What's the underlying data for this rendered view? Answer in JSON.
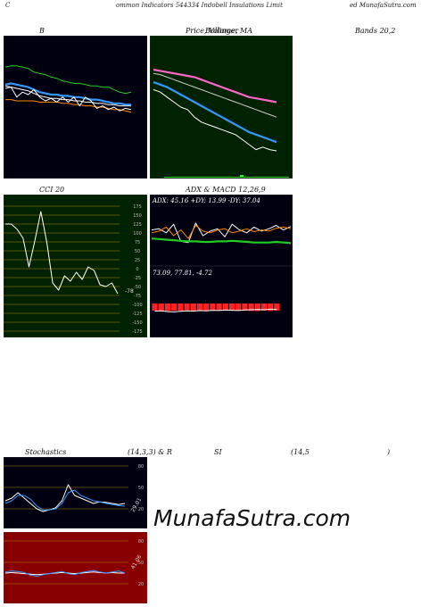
{
  "header": {
    "left": "C",
    "middle": "ommon  Indicators 544334  Indobell Insulations Limit",
    "right": "ed MunafaSutra.com"
  },
  "titles": {
    "bollinger": "B",
    "price_ma": "Price,  Volume,  MA",
    "price_ma_over": "Bollinger",
    "bands": "Bands 20,2",
    "cci": "CCI 20",
    "adx_macd": "ADX  & MACD 12,26,9",
    "stoch_left": "Stochastics",
    "stoch_mid": "(14,3,3) & R",
    "rsi_mid": "SI",
    "rsi_right": "(14,5",
    "rsi_close": ")"
  },
  "watermark": "MunafaSutra.com",
  "chart_data": [
    {
      "type": "line",
      "title": "B",
      "series": [
        {
          "color": "#22cc22",
          "values": [
            82,
            83,
            83,
            82,
            81,
            78,
            77,
            76,
            74,
            73,
            71,
            70,
            69,
            69,
            68,
            67,
            67,
            66,
            66,
            64,
            62,
            61,
            62
          ]
        },
        {
          "color": "#ffffff",
          "values": [
            65,
            66,
            65,
            64,
            63,
            61,
            59,
            58,
            57,
            57,
            56,
            56,
            55,
            55,
            54,
            54,
            53,
            53,
            52,
            52,
            51,
            51,
            51
          ]
        },
        {
          "color": "#3399ff",
          "values": [
            68,
            69,
            68,
            67,
            66,
            64,
            62,
            61,
            60,
            60,
            59,
            59,
            58,
            58,
            57,
            56,
            56,
            55,
            54,
            53,
            53,
            52,
            52
          ]
        },
        {
          "color": "#ff8800",
          "values": [
            56,
            56,
            55,
            55,
            55,
            55,
            54,
            54,
            54,
            54,
            53,
            53,
            52,
            52,
            51,
            51,
            50,
            50,
            49,
            48,
            48,
            47,
            46
          ]
        },
        {
          "color": "#ffffff",
          "values": [
            67,
            66,
            58,
            62,
            60,
            64,
            58,
            55,
            57,
            54,
            58,
            54,
            58,
            51,
            58,
            55,
            49,
            51,
            48,
            50,
            47,
            49,
            48
          ]
        }
      ]
    },
    {
      "type": "line",
      "title": "Price,  Volume,  MA",
      "series": [
        {
          "color": "#ff66cc",
          "values": [
            80,
            79,
            78,
            77,
            76,
            75,
            74,
            72,
            70,
            68,
            66,
            64,
            62,
            60,
            58,
            57,
            56,
            55,
            54
          ]
        },
        {
          "color": "#cccccc",
          "values": [
            77,
            76,
            74,
            72,
            70,
            68,
            66,
            64,
            62,
            60,
            58,
            56,
            54,
            52,
            50,
            48,
            46,
            44,
            42
          ]
        },
        {
          "color": "#3399ff",
          "values": [
            70,
            68,
            66,
            63,
            60,
            57,
            54,
            51,
            48,
            45,
            42,
            39,
            36,
            33,
            30,
            28,
            26,
            24,
            22
          ]
        },
        {
          "color": "#ffffff",
          "values": [
            64,
            62,
            58,
            54,
            50,
            48,
            42,
            38,
            36,
            34,
            32,
            30,
            28,
            24,
            20,
            16,
            18,
            16,
            15
          ]
        }
      ]
    },
    {
      "type": "line",
      "title": "CCI 20",
      "y_ticks": [
        175,
        150,
        125,
        100,
        75,
        50,
        25,
        0,
        -25,
        -50,
        -75,
        -100,
        -125,
        -150,
        -175
      ],
      "series": [
        {
          "color": "#ffffff",
          "values": [
            125,
            125,
            110,
            85,
            5,
            80,
            160,
            75,
            -40,
            -60,
            -20,
            -35,
            -10,
            -30,
            5,
            -5,
            -45,
            -50,
            -40,
            -70
          ]
        }
      ],
      "last_label": "-78"
    },
    {
      "type": "line",
      "title": "ADX  & MACD 12,26,9",
      "label": "ADX: 45.16  +DY: 13.99 -DY: 37.04",
      "series": [
        {
          "color": "#ffffff",
          "values": [
            60,
            62,
            55,
            70,
            40,
            38,
            72,
            50,
            58,
            62,
            48,
            70,
            60,
            55,
            65,
            58,
            62,
            68,
            60,
            66
          ]
        },
        {
          "color": "#ff8800",
          "values": [
            55,
            58,
            65,
            50,
            60,
            45,
            68,
            58,
            55,
            60,
            62,
            55,
            58,
            62,
            57,
            60,
            58,
            63,
            65,
            62
          ]
        },
        {
          "color": "#22cc22",
          "values": [
            45,
            44,
            43,
            42,
            41,
            40,
            40,
            39,
            39,
            40,
            40,
            41,
            40,
            39,
            38,
            38,
            38,
            39,
            38,
            37
          ]
        }
      ]
    },
    {
      "type": "bar",
      "label": "73.09,  77.81,  -4.72",
      "series": [
        {
          "color": "#ff2222",
          "values": [
            20,
            20,
            21,
            20,
            20,
            19,
            20,
            19,
            20,
            20,
            19,
            20,
            19,
            20,
            20,
            21,
            21,
            20,
            21,
            20
          ]
        },
        {
          "color": "#ffffff",
          "values": [
            5,
            6,
            3,
            2,
            4,
            6,
            5,
            7,
            6,
            8,
            7,
            9,
            8,
            7,
            9,
            10,
            11,
            10,
            12,
            11
          ]
        }
      ]
    },
    {
      "type": "line",
      "title": "Stochastics",
      "y_ticks": [
        80,
        50,
        20
      ],
      "series": [
        {
          "color": "#ffffff",
          "values": [
            35,
            40,
            50,
            40,
            30,
            20,
            15,
            18,
            22,
            35,
            65,
            45,
            40,
            35,
            30,
            33,
            32,
            30,
            28,
            30
          ]
        },
        {
          "color": "#3399ff",
          "values": [
            30,
            35,
            45,
            45,
            38,
            25,
            18,
            18,
            20,
            30,
            50,
            55,
            45,
            40,
            35,
            33,
            30,
            28,
            26,
            25
          ]
        }
      ],
      "last_label": "29.01"
    },
    {
      "type": "line",
      "title": "SI",
      "y_ticks": [
        80,
        50,
        20
      ],
      "series": [
        {
          "color": "#ffffff",
          "values": [
            40,
            41,
            40,
            39,
            38,
            37,
            38,
            39,
            40,
            41,
            40,
            39,
            40,
            41,
            42,
            41,
            40,
            41,
            40,
            40
          ]
        },
        {
          "color": "#3399ff",
          "values": [
            42,
            44,
            43,
            41,
            36,
            34,
            37,
            39,
            41,
            43,
            39,
            37,
            41,
            43,
            45,
            42,
            40,
            42,
            44,
            40
          ]
        }
      ],
      "last_label": "41.06"
    }
  ]
}
